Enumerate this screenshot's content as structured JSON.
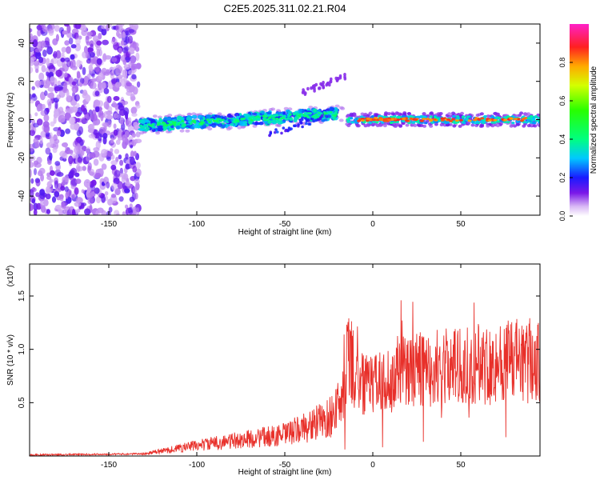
{
  "title": "C2E5.2025.311.02.21.R04",
  "chart_data": [
    {
      "type": "heatmap",
      "xlabel": "Height of straight line (km)",
      "ylabel": "Frequency (Hz)",
      "xlim": [
        -195,
        95
      ],
      "ylim": [
        -50,
        50
      ],
      "xticks": [
        -150,
        -100,
        -50,
        0,
        50
      ],
      "yticks": [
        -40,
        -20,
        0,
        20,
        40
      ],
      "colorbar": {
        "label": "Normalized spectral amplitude",
        "range": [
          0.0,
          1.0
        ],
        "ticks": [
          0.0,
          0.2,
          0.4,
          0.6,
          0.8
        ]
      },
      "features": [
        {
          "name": "diffuse scatter",
          "x_range": [
            -195,
            -130
          ],
          "freq_range": [
            -50,
            50
          ],
          "amplitude": 0.1
        },
        {
          "name": "main band",
          "x_range": [
            -130,
            -20
          ],
          "freq_at_start": -3,
          "freq_at_end": 3,
          "amplitude": 0.3
        },
        {
          "name": "secondary echo",
          "x_range": [
            -40,
            -15
          ],
          "freq_at_start": 15,
          "freq_at_end": 23,
          "amplitude": 0.12
        },
        {
          "name": "strong band",
          "x_range": [
            -15,
            95
          ],
          "freq_center": 0,
          "amplitude": 0.95
        }
      ]
    },
    {
      "type": "line",
      "xlabel": "Height of straight line (km)",
      "ylabel": "SNR (10 * v/v)",
      "ylabel_multiplier": "(x10",
      "ylabel_exponent": "4",
      "ylabel_multiplier_close": ")",
      "xlim": [
        -195,
        95
      ],
      "ylim": [
        0,
        1.8
      ],
      "xticks": [
        -150,
        -100,
        -50,
        0,
        50
      ],
      "yticks": [
        "0.5",
        "1.0",
        "1.5"
      ],
      "color": "#e8302a",
      "trend": [
        {
          "x": -195,
          "y": 0.01
        },
        {
          "x": -130,
          "y": 0.02
        },
        {
          "x": -100,
          "y": 0.1
        },
        {
          "x": -50,
          "y": 0.2
        },
        {
          "x": -25,
          "y": 0.35
        },
        {
          "x": -12,
          "y": 0.7
        },
        {
          "x": 0,
          "y": 0.65
        },
        {
          "x": 20,
          "y": 0.8
        },
        {
          "x": 50,
          "y": 0.85
        },
        {
          "x": 95,
          "y": 0.9
        }
      ]
    }
  ]
}
